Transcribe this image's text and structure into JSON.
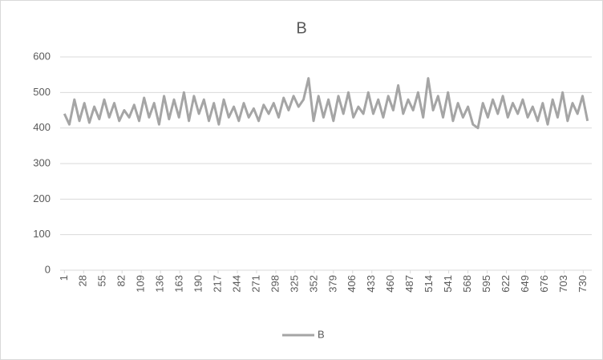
{
  "chart_data": {
    "type": "line",
    "title": "B",
    "x": [
      1,
      8,
      15,
      22,
      29,
      36,
      43,
      50,
      57,
      64,
      71,
      78,
      85,
      92,
      99,
      106,
      113,
      120,
      127,
      134,
      141,
      148,
      155,
      162,
      169,
      176,
      183,
      190,
      197,
      204,
      211,
      218,
      225,
      232,
      239,
      246,
      253,
      260,
      267,
      274,
      281,
      288,
      295,
      302,
      309,
      316,
      323,
      330,
      337,
      344,
      351,
      358,
      365,
      372,
      379,
      386,
      393,
      400,
      407,
      414,
      421,
      428,
      435,
      442,
      449,
      456,
      463,
      470,
      477,
      484,
      491,
      498,
      505,
      512,
      519,
      526,
      533,
      540,
      547,
      554,
      561,
      568,
      575,
      582,
      589,
      596,
      603,
      610,
      617,
      624,
      631,
      638,
      645,
      652,
      659,
      666,
      673,
      680,
      687,
      694,
      701,
      708,
      715,
      722,
      729,
      736
    ],
    "series": [
      {
        "name": "B",
        "color": "#a5a5a5",
        "values": [
          440,
          410,
          480,
          420,
          470,
          415,
          460,
          425,
          480,
          430,
          470,
          420,
          450,
          430,
          465,
          420,
          485,
          430,
          470,
          410,
          490,
          425,
          480,
          430,
          500,
          420,
          490,
          440,
          480,
          420,
          470,
          410,
          480,
          430,
          460,
          420,
          470,
          430,
          455,
          420,
          465,
          440,
          470,
          430,
          485,
          450,
          490,
          460,
          480,
          540,
          420,
          490,
          430,
          480,
          420,
          490,
          440,
          500,
          430,
          460,
          440,
          500,
          440,
          480,
          430,
          490,
          450,
          520,
          440,
          480,
          450,
          500,
          430,
          540,
          450,
          490,
          430,
          500,
          420,
          470,
          430,
          460,
          410,
          400,
          470,
          430,
          480,
          440,
          490,
          430,
          470,
          440,
          480,
          430,
          460,
          420,
          470,
          410,
          480,
          430,
          500,
          420,
          470,
          440,
          490,
          420
        ]
      }
    ],
    "xlim": [
      -5,
      742
    ],
    "xticks": [
      1,
      28,
      55,
      82,
      109,
      136,
      163,
      190,
      217,
      244,
      271,
      298,
      325,
      352,
      379,
      406,
      433,
      460,
      487,
      514,
      541,
      568,
      595,
      622,
      649,
      676,
      703,
      730
    ],
    "ylim": [
      0,
      600
    ],
    "yticks": [
      0,
      100,
      200,
      300,
      400,
      500,
      600
    ],
    "grid": true,
    "legend": "bottom"
  }
}
